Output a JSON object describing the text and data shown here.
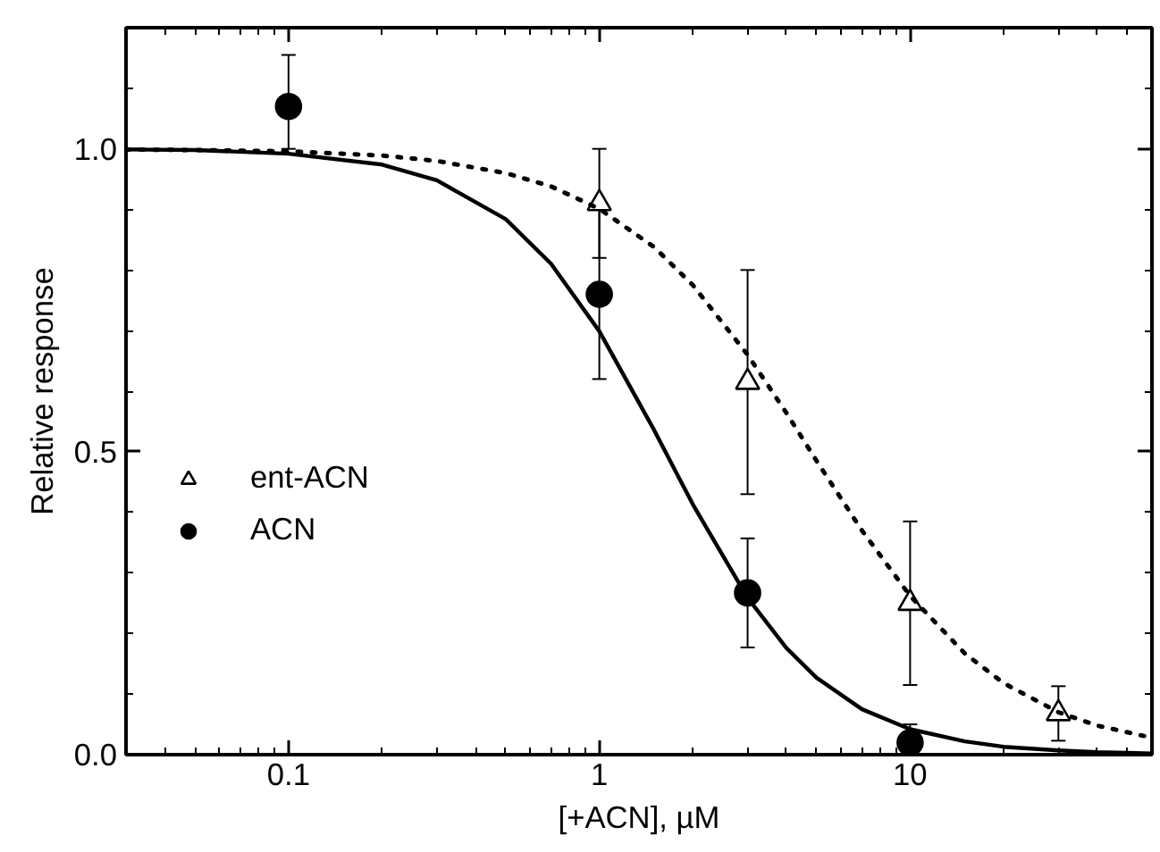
{
  "chart_data": {
    "type": "scatter",
    "xlabel": "[+ACN], µM",
    "ylabel": "Relative response",
    "log": "x",
    "xlim": [
      0.03,
      60
    ],
    "xticks": [
      0.1,
      1,
      10
    ],
    "ylim": [
      0,
      1.2
    ],
    "yticks": [
      {
        "value": 0,
        "label": "0.0"
      },
      {
        "value": 0.5,
        "label": "0.5"
      },
      {
        "value": 1,
        "label": "1.0"
      }
    ],
    "grid": false,
    "legend": "left",
    "series": [
      {
        "name": "ent-ACN",
        "color": "#000000",
        "marker": "triangle",
        "x": [
          1,
          3,
          10,
          30
        ],
        "values": [
          0.91,
          0.615,
          0.25,
          0.068
        ],
        "errors": [
          0.09,
          0.185,
          0.135,
          0.045
        ]
      },
      {
        "name": "ACN",
        "color": "#000000",
        "marker": "circle",
        "x": [
          0.1,
          1,
          3,
          10
        ],
        "values": [
          1.07,
          0.76,
          0.267,
          0.02
        ],
        "errors": [
          [
            1.0,
            1.155
          ],
          0.14,
          0.09,
          0.03
        ]
      },
      {
        "type": "line",
        "color": "#000000",
        "marker": "none",
        "line_style": "dotted",
        "x": [
          0.03,
          0.05,
          0.1,
          0.2,
          0.3,
          0.5,
          0.7,
          1,
          1.5,
          2,
          3,
          4,
          5,
          7,
          10,
          15,
          20,
          30,
          40,
          60
        ],
        "values": [
          0.999,
          0.998,
          0.996,
          0.989,
          0.98,
          0.96,
          0.938,
          0.901,
          0.838,
          0.775,
          0.66,
          0.564,
          0.485,
          0.37,
          0.262,
          0.167,
          0.118,
          0.07,
          0.048,
          0.028
        ]
      },
      {
        "type": "line",
        "color": "#000000",
        "marker": "none",
        "line_style": "solid",
        "x": [
          0.03,
          0.05,
          0.1,
          0.2,
          0.3,
          0.5,
          0.7,
          1,
          1.5,
          2,
          3,
          4,
          5,
          7,
          10,
          15,
          20,
          30,
          40,
          60
        ],
        "values": [
          0.999,
          0.998,
          0.992,
          0.974,
          0.948,
          0.884,
          0.81,
          0.699,
          0.536,
          0.413,
          0.259,
          0.176,
          0.127,
          0.075,
          0.042,
          0.022,
          0.013,
          0.007,
          0.004,
          0.002
        ]
      }
    ]
  }
}
